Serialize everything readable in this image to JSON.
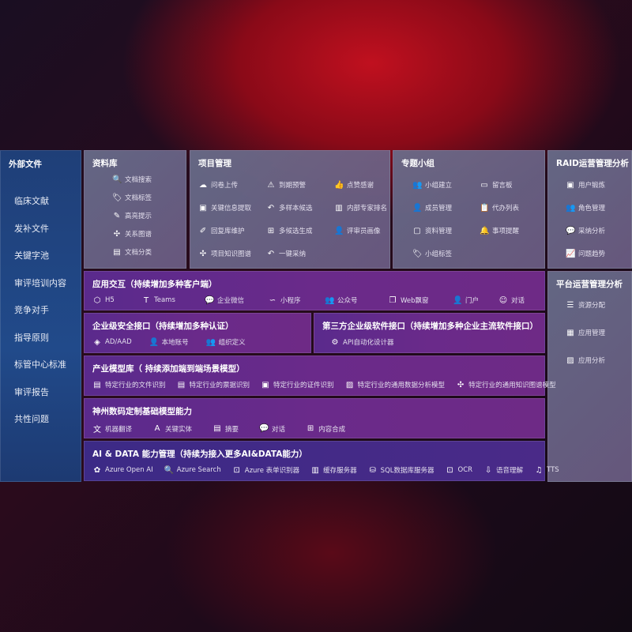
{
  "sidebar": {
    "title": "外部文件",
    "items": [
      "临床文献",
      "发补文件",
      "关键字池",
      "审评培训内容",
      "竞争对手",
      "指导原则",
      "标管中心标准",
      "审评报告",
      "共性问题"
    ]
  },
  "library": {
    "title": "资料库",
    "items": [
      {
        "icon": "document-search-icon",
        "g": "🔍",
        "label": "文档搜索"
      },
      {
        "icon": "tag-icon",
        "g": "🏷",
        "label": "文档标签"
      },
      {
        "icon": "pen-icon",
        "g": "✎",
        "label": "高亮提示"
      },
      {
        "icon": "graph-icon",
        "g": "✣",
        "label": "关系图谱"
      },
      {
        "icon": "document-icon",
        "g": "▤",
        "label": "文档分类"
      }
    ]
  },
  "project": {
    "title": "项目管理",
    "items": [
      {
        "icon": "cloud-upload-icon",
        "g": "☁",
        "label": "问卷上传"
      },
      {
        "icon": "alarm-icon",
        "g": "⚠",
        "label": "到期预警"
      },
      {
        "icon": "thumbs-up-icon",
        "g": "👍",
        "label": "点赞感谢"
      },
      {
        "icon": "window-icon",
        "g": "▣",
        "label": "关键信息提取"
      },
      {
        "icon": "reply-icon",
        "g": "↶",
        "label": "多样本候选"
      },
      {
        "icon": "ranking-icon",
        "g": "▥",
        "label": "内部专家排名"
      },
      {
        "icon": "edit-icon",
        "g": "✐",
        "label": "回复库维护"
      },
      {
        "icon": "puzzle-icon",
        "g": "⊞",
        "label": "多候选生成"
      },
      {
        "icon": "user-icon",
        "g": "👤",
        "label": "评审员画像"
      },
      {
        "icon": "graph-icon",
        "g": "✣",
        "label": "项目知识图谱"
      },
      {
        "icon": "reply-icon",
        "g": "↶",
        "label": "一键采纳"
      }
    ]
  },
  "group": {
    "title": "专题小组",
    "items": [
      {
        "icon": "users-icon",
        "g": "👥",
        "label": "小组建立"
      },
      {
        "icon": "bbs-icon",
        "g": "▭",
        "label": "留言板"
      },
      {
        "icon": "user-add-icon",
        "g": "👤",
        "label": "成员管理"
      },
      {
        "icon": "clipboard-icon",
        "g": "📋",
        "label": "代办列表"
      },
      {
        "icon": "folder-icon",
        "g": "▢",
        "label": "资料管理"
      },
      {
        "icon": "bell-icon",
        "g": "🔔",
        "label": "事项提醒"
      },
      {
        "icon": "tag-icon",
        "g": "🏷",
        "label": "小组标签"
      }
    ]
  },
  "raid": {
    "title": "RAID运营管理分析",
    "items": [
      {
        "icon": "id-card-icon",
        "g": "▣",
        "label": "用户锻炼"
      },
      {
        "icon": "users-icon",
        "g": "👥",
        "label": "角色管理"
      },
      {
        "icon": "qa-icon",
        "g": "💬",
        "label": "采纳分析"
      },
      {
        "icon": "trend-icon",
        "g": "📈",
        "label": "问题趋势"
      }
    ]
  },
  "platform": {
    "title": "平台运营管理分析",
    "items": [
      {
        "icon": "list-icon",
        "g": "☰",
        "label": "资源分配"
      },
      {
        "icon": "apps-icon",
        "g": "▦",
        "label": "应用管理"
      },
      {
        "icon": "chart-icon",
        "g": "▨",
        "label": "应用分析"
      }
    ]
  },
  "apps": {
    "title": "应用交互（持续增加多种客户端）",
    "items": [
      {
        "icon": "html5-icon",
        "g": "⬡",
        "label": "H5"
      },
      {
        "icon": "teams-icon",
        "g": "T",
        "label": "Teams"
      },
      {
        "icon": "wechat-icon",
        "g": "💬",
        "label": "企业微信"
      },
      {
        "icon": "miniprogram-icon",
        "g": "∽",
        "label": "小程序"
      },
      {
        "icon": "users-icon",
        "g": "👥",
        "label": "公众号"
      },
      {
        "icon": "window-icon",
        "g": "❐",
        "label": "Web飘窗"
      },
      {
        "icon": "portal-icon",
        "g": "👤",
        "label": "门户"
      },
      {
        "icon": "chat-icon",
        "g": "☺",
        "label": "对话"
      }
    ]
  },
  "security": {
    "title": "企业级安全接口（持续增加多种认证）",
    "items": [
      {
        "icon": "ad-icon",
        "g": "◈",
        "label": "AD/AAD"
      },
      {
        "icon": "user-icon",
        "g": "👤",
        "label": "本地账号"
      },
      {
        "icon": "org-icon",
        "g": "👥",
        "label": "组织定义"
      }
    ]
  },
  "thirdparty": {
    "title": "第三方企业级软件接口（持续增加多种企业主流软件接口）",
    "items": [
      {
        "icon": "gear-icon",
        "g": "⚙",
        "label": "API自动化设计器"
      }
    ]
  },
  "models": {
    "title": "产业模型库（ 持续添加端到端场景模型）",
    "items": [
      {
        "icon": "file-icon",
        "g": "▤",
        "label": "特定行业的文件识别"
      },
      {
        "icon": "receipt-icon",
        "g": "▤",
        "label": "特定行业的票据识别"
      },
      {
        "icon": "id-card-icon",
        "g": "▣",
        "label": "特定行业的证件识别"
      },
      {
        "icon": "analysis-icon",
        "g": "▨",
        "label": "特定行业的通用数据分析模型"
      },
      {
        "icon": "graph-icon",
        "g": "✣",
        "label": "特定行业的通用知识图谱模型"
      }
    ]
  },
  "base": {
    "title": "神州数码定制基础模型能力",
    "items": [
      {
        "icon": "translate-icon",
        "g": "文",
        "label": "机器翻译"
      },
      {
        "icon": "entity-icon",
        "g": "A",
        "label": "关键实体"
      },
      {
        "icon": "summary-icon",
        "g": "▤",
        "label": "摘要"
      },
      {
        "icon": "chat-icon",
        "g": "💬",
        "label": "对话"
      },
      {
        "icon": "compose-icon",
        "g": "⊞",
        "label": "内容合成"
      }
    ]
  },
  "aidata": {
    "title": "AI & DATA 能力管理（持续为接入更多AI&DATA能力）",
    "items": [
      {
        "icon": "openai-icon",
        "g": "✿",
        "label": "Azure Open AI"
      },
      {
        "icon": "search-icon",
        "g": "🔍",
        "label": "Azure Search"
      },
      {
        "icon": "form-icon",
        "g": "⊡",
        "label": "Azure 表单识别器"
      },
      {
        "icon": "cache-icon",
        "g": "▥",
        "label": "缓存服务器"
      },
      {
        "icon": "database-icon",
        "g": "⛁",
        "label": "SQL数据库服务器"
      },
      {
        "icon": "ocr-icon",
        "g": "⊡",
        "label": "OCR"
      },
      {
        "icon": "speech-icon",
        "g": "⇩",
        "label": "语音理解"
      },
      {
        "icon": "tts-icon",
        "g": "♫",
        "label": "TTS"
      }
    ]
  }
}
